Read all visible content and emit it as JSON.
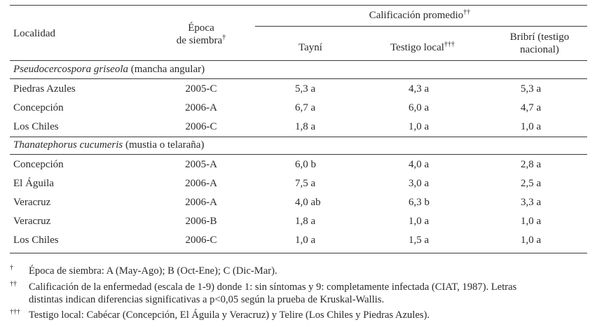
{
  "header": {
    "localidad": "Localidad",
    "epoca_line1": "Época",
    "epoca_line2": "de siembra",
    "epoca_mark": "†",
    "calificacion": "Calificación promedio",
    "calificacion_mark": "††",
    "col_tayni": "Tayní",
    "col_testigo": "Testigo local",
    "col_testigo_mark": "†††",
    "col_bribri_line1": "Bribrí (testigo",
    "col_bribri_line2": "nacional)"
  },
  "sections": [
    {
      "species": "Pseudocercospora griseola",
      "common": " (mancha angular)",
      "rows": [
        {
          "localidad": "Piedras Azules",
          "epoca": "2005-C",
          "tayni": "5,3 a",
          "testigo": "4,3 a",
          "bribri": "5,3 a"
        },
        {
          "localidad": "Concepción",
          "epoca": "2006-A",
          "tayni": "6,7 a",
          "testigo": "6,0 a",
          "bribri": "4,7 a"
        },
        {
          "localidad": "Los Chiles",
          "epoca": "2006-C",
          "tayni": "1,8 a",
          "testigo": "1,0 a",
          "bribri": "1,0 a"
        }
      ]
    },
    {
      "species": "Thanatephorus cucumeris",
      "common": " (mustia o telaraña)",
      "rows": [
        {
          "localidad": "Concepción",
          "epoca": "2005-A",
          "tayni": "6,0 b",
          "testigo": "4,0 a",
          "bribri": "2,8 a"
        },
        {
          "localidad": "El Águila",
          "epoca": "2006-A",
          "tayni": "7,5 a",
          "testigo": "3,0 a",
          "bribri": "2,5 a"
        },
        {
          "localidad": "Veracruz",
          "epoca": "2006-A",
          "tayni": "4,0 ab",
          "testigo": "6,3 b",
          "bribri": "3,3 a"
        },
        {
          "localidad": "Veracruz",
          "epoca": "2006-B",
          "tayni": "1,8 a",
          "testigo": "1,0 a",
          "bribri": "1,0 a"
        },
        {
          "localidad": "Los Chiles",
          "epoca": "2006-C",
          "tayni": "1,0 a",
          "testigo": "1,5 a",
          "bribri": "1,0 a"
        }
      ]
    }
  ],
  "footnotes": [
    {
      "mark": "†",
      "lines": [
        "Época de siembra: A (May-Ago); B (Oct-Ene); C (Dic-Mar)."
      ]
    },
    {
      "mark": "††",
      "lines": [
        "Calificación de la enfermedad (escala de 1-9) donde 1: sin síntomas y 9: completamente infectada (CIAT, 1987). Letras",
        "distintas indican diferencias significativas a p<0,05 según la prueba de Kruskal-Wallis."
      ]
    },
    {
      "mark": "†††",
      "lines": [
        "Testigo local: Cabécar (Concepción, El Águila y Veracruz) y Telire (Los Chiles y Piedras Azules)."
      ]
    }
  ]
}
